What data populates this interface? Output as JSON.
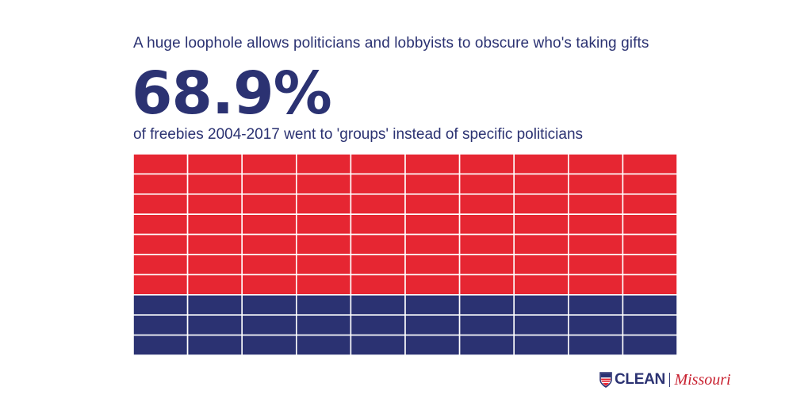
{
  "header": {
    "headline": "A huge loophole allows politicians and lobbyists to obscure who's taking gifts",
    "big_number": "68.9%",
    "subline": "of freebies 2004-2017 went to 'groups' instead of specific politicians"
  },
  "chart_data": {
    "type": "waffle",
    "title": "A huge loophole allows politicians and lobbyists to obscure who's taking gifts",
    "percent_groups": 68.9,
    "grid": {
      "columns": 10,
      "rows": 10
    },
    "segments": [
      {
        "value": 70,
        "color": "#e62632"
      },
      {
        "value": 30,
        "color": "#2b3272"
      }
    ],
    "grid_lines": true
  },
  "colors": {
    "text": "#2b3272",
    "red": "#e62632",
    "navy": "#2b3272",
    "grid_line": "#ffffff"
  },
  "logo": {
    "icon": "shield-icon",
    "clean": "CLEAN",
    "missouri": "Missouri"
  }
}
